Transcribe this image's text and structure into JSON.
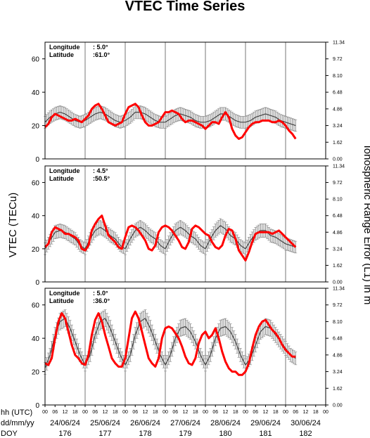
{
  "chart_data": {
    "type": "line",
    "title": "VTEC Time Series",
    "ylabel_left": "VTEC (TECu)",
    "ylabel_right": "Ionospheric Range Error (L1) in m",
    "left_ticks": [
      "0",
      "20",
      "40",
      "60"
    ],
    "right_ticks": [
      "0.00",
      "1.62",
      "3.24",
      "4.86",
      "6.48",
      "8.10",
      "9.72",
      "11.34"
    ],
    "ylim": [
      0,
      70
    ],
    "hour_ticks": [
      "00",
      "06",
      "12",
      "18",
      "00",
      "06",
      "12",
      "18",
      "00",
      "06",
      "12",
      "18",
      "00",
      "06",
      "12",
      "18",
      "00",
      "06",
      "12",
      "18",
      "00",
      "06",
      "12",
      "18",
      "00",
      "06",
      "12",
      "18",
      "00"
    ],
    "row_labels": [
      "hh (UTC)",
      "dd/mm/yy",
      "DOY"
    ],
    "dates": [
      "24/06/24",
      "25/06/24",
      "26/06/24",
      "27/06/24",
      "28/06/24",
      "29/06/24",
      "30/06/24"
    ],
    "doys": [
      "176",
      "177",
      "178",
      "179",
      "180",
      "181",
      "182"
    ],
    "x_range_hours": [
      0,
      168
    ],
    "data_end_hour": 150,
    "panels": [
      {
        "longitude_label": "Longitude",
        "longitude": "5.0°",
        "latitude_label": "Latitude",
        "latitude": "61.0°",
        "series": [
          {
            "role": "observed",
            "color": "#ff0000",
            "x": [
              0,
              2,
              4,
              6,
              8,
              10,
              12,
              14,
              16,
              18,
              20,
              22,
              24,
              26,
              28,
              30,
              32,
              34,
              36,
              38,
              40,
              42,
              44,
              46,
              48,
              50,
              52,
              54,
              56,
              58,
              60,
              62,
              64,
              66,
              68,
              70,
              72,
              74,
              76,
              78,
              80,
              82,
              84,
              86,
              88,
              90,
              92,
              94,
              96,
              98,
              100,
              102,
              104,
              106,
              108,
              110,
              112,
              114,
              116,
              118,
              120,
              122,
              124,
              126,
              128,
              130,
              132,
              134,
              136,
              138,
              140,
              142,
              144,
              146,
              148,
              150
            ],
            "y": [
              19,
              21,
              25,
              27,
              26,
              25,
              24,
              23,
              23,
              24,
              23,
              22,
              24,
              26,
              30,
              32,
              33,
              30,
              26,
              22,
              21,
              20,
              21,
              22,
              27,
              31,
              32,
              33,
              31,
              26,
              22,
              20,
              20,
              21,
              22,
              25,
              28,
              28,
              29,
              28,
              27,
              24,
              22,
              23,
              23,
              22,
              21,
              20,
              18,
              20,
              22,
              22,
              21,
              25,
              28,
              25,
              18,
              14,
              12,
              13,
              16,
              19,
              21,
              22,
              22,
              23,
              23,
              23,
              22,
              22,
              23,
              22,
              20,
              17,
              15,
              12
            ]
          },
          {
            "role": "model",
            "color": "#555555",
            "x": [
              0,
              3,
              6,
              9,
              12,
              15,
              18,
              21,
              24,
              27,
              30,
              33,
              36,
              39,
              42,
              45,
              48,
              51,
              54,
              57,
              60,
              63,
              66,
              69,
              72,
              75,
              78,
              81,
              84,
              87,
              90,
              93,
              96,
              99,
              102,
              105,
              108,
              111,
              114,
              117,
              120,
              123,
              126,
              129,
              132,
              135,
              138,
              141,
              144,
              147,
              150
            ],
            "y": [
              22,
              25,
              27,
              28,
              27,
              25,
              23,
              22,
              23,
              25,
              27,
              28,
              27,
              25,
              23,
              22,
              23,
              25,
              28,
              28,
              27,
              25,
              23,
              22,
              22,
              24,
              26,
              27,
              26,
              25,
              23,
              22,
              22,
              23,
              25,
              27,
              27,
              25,
              23,
              22,
              22,
              23,
              25,
              26,
              27,
              26,
              25,
              23,
              22,
              21,
              20
            ]
          }
        ]
      },
      {
        "longitude_label": "Longitude",
        "longitude": "4.5°",
        "latitude_label": "Latitude",
        "latitude": "50.5°",
        "series": [
          {
            "role": "observed",
            "color": "#ff0000",
            "x": [
              0,
              2,
              4,
              6,
              8,
              10,
              12,
              14,
              16,
              18,
              20,
              22,
              24,
              26,
              28,
              30,
              32,
              34,
              36,
              38,
              40,
              42,
              44,
              46,
              48,
              50,
              52,
              54,
              56,
              58,
              60,
              62,
              64,
              66,
              68,
              70,
              72,
              74,
              76,
              78,
              80,
              82,
              84,
              86,
              88,
              90,
              92,
              94,
              96,
              98,
              100,
              102,
              104,
              106,
              108,
              110,
              112,
              114,
              116,
              118,
              120,
              122,
              124,
              126,
              128,
              130,
              132,
              134,
              136,
              138,
              140,
              142,
              144,
              146,
              148,
              150
            ],
            "y": [
              21,
              23,
              30,
              33,
              32,
              31,
              29,
              29,
              28,
              27,
              25,
              20,
              19,
              22,
              31,
              35,
              38,
              40,
              34,
              28,
              26,
              24,
              21,
              20,
              27,
              33,
              34,
              33,
              31,
              28,
              25,
              20,
              19,
              22,
              30,
              33,
              34,
              33,
              31,
              28,
              25,
              21,
              20,
              24,
              32,
              34,
              33,
              31,
              29,
              28,
              24,
              21,
              20,
              22,
              28,
              32,
              31,
              26,
              19,
              16,
              13,
              18,
              24,
              29,
              30,
              30,
              30,
              30,
              29,
              30,
              31,
              29,
              27,
              25,
              23,
              21
            ]
          },
          {
            "role": "model",
            "color": "#555555",
            "x": [
              0,
              3,
              6,
              9,
              12,
              15,
              18,
              21,
              24,
              27,
              30,
              33,
              36,
              39,
              42,
              45,
              48,
              51,
              54,
              57,
              60,
              63,
              66,
              69,
              72,
              75,
              78,
              81,
              84,
              87,
              90,
              93,
              96,
              99,
              102,
              105,
              108,
              111,
              114,
              117,
              120,
              123,
              126,
              129,
              132,
              135,
              138,
              141,
              144,
              147,
              150
            ],
            "y": [
              20,
              25,
              30,
              31,
              30,
              28,
              26,
              22,
              20,
              26,
              31,
              33,
              31,
              28,
              26,
              22,
              20,
              26,
              31,
              33,
              31,
              28,
              26,
              22,
              20,
              26,
              31,
              33,
              31,
              28,
              26,
              22,
              20,
              26,
              31,
              34,
              32,
              28,
              26,
              22,
              20,
              25,
              29,
              31,
              31,
              28,
              27,
              25,
              23,
              22,
              21
            ]
          }
        ]
      },
      {
        "longitude_label": "Longitude",
        "longitude": "5.0°",
        "latitude_label": "Latitude",
        "latitude": "36.0°",
        "series": [
          {
            "role": "observed",
            "color": "#ff0000",
            "x": [
              0,
              2,
              4,
              6,
              8,
              10,
              12,
              14,
              16,
              18,
              20,
              22,
              24,
              26,
              28,
              30,
              32,
              34,
              36,
              38,
              40,
              42,
              44,
              46,
              48,
              50,
              52,
              54,
              56,
              58,
              60,
              62,
              64,
              66,
              68,
              70,
              72,
              74,
              76,
              78,
              80,
              82,
              84,
              86,
              88,
              90,
              92,
              94,
              96,
              98,
              100,
              102,
              104,
              106,
              108,
              110,
              112,
              114,
              116,
              118,
              120,
              122,
              124,
              126,
              128,
              130,
              132,
              134,
              136,
              138,
              140,
              142,
              144,
              146,
              148,
              150
            ],
            "y": [
              25,
              24,
              28,
              40,
              50,
              55,
              52,
              44,
              36,
              30,
              28,
              25,
              24,
              30,
              42,
              51,
              55,
              50,
              42,
              35,
              28,
              25,
              23,
              23,
              28,
              40,
              52,
              56,
              52,
              44,
              36,
              28,
              25,
              23,
              28,
              40,
              46,
              47,
              46,
              43,
              40,
              35,
              29,
              25,
              24,
              28,
              37,
              42,
              44,
              40,
              42,
              46,
              40,
              32,
              26,
              22,
              20,
              20,
              18,
              18,
              20,
              25,
              34,
              42,
              47,
              50,
              51,
              48,
              45,
              43,
              40,
              36,
              33,
              31,
              29,
              29
            ]
          },
          {
            "role": "model",
            "color": "#555555",
            "x": [
              0,
              3,
              6,
              9,
              12,
              15,
              18,
              21,
              24,
              27,
              30,
              33,
              36,
              39,
              42,
              45,
              48,
              51,
              54,
              57,
              60,
              63,
              66,
              69,
              72,
              75,
              78,
              81,
              84,
              87,
              90,
              93,
              96,
              99,
              102,
              105,
              108,
              111,
              114,
              117,
              120,
              123,
              126,
              129,
              132,
              135,
              138,
              141,
              144,
              147,
              150
            ],
            "y": [
              22,
              30,
              42,
              50,
              52,
              46,
              38,
              30,
              24,
              30,
              42,
              50,
              52,
              46,
              38,
              30,
              24,
              30,
              42,
              50,
              52,
              46,
              38,
              30,
              24,
              30,
              40,
              46,
              47,
              44,
              38,
              30,
              24,
              30,
              40,
              46,
              47,
              44,
              38,
              30,
              24,
              28,
              36,
              44,
              47,
              46,
              42,
              38,
              34,
              30,
              28
            ]
          }
        ]
      }
    ]
  }
}
